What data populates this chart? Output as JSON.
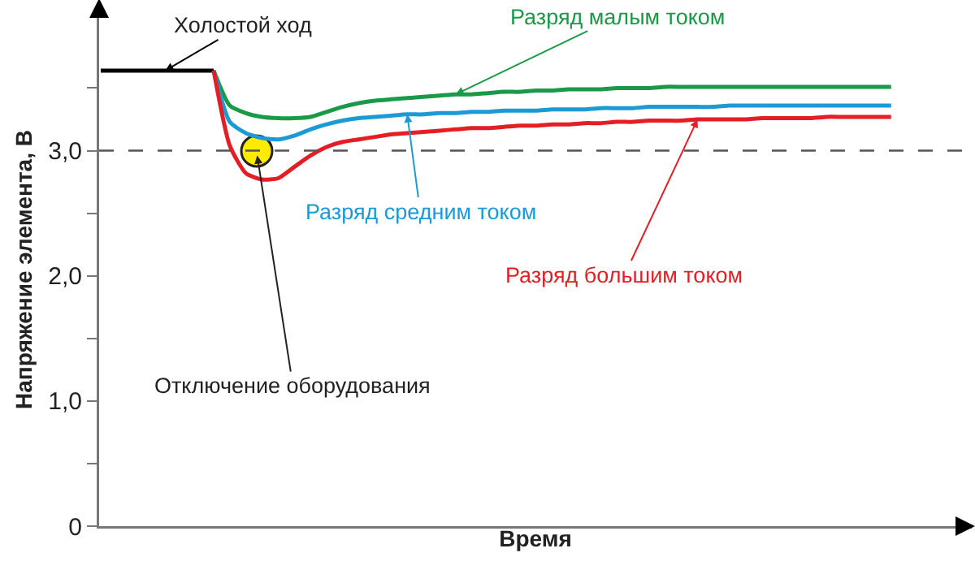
{
  "chart_data": {
    "type": "line",
    "xlabel": "Время",
    "ylabel": "Напряжение элемента, В",
    "categories": [
      null,
      null,
      null,
      null,
      null,
      null,
      null,
      null,
      null,
      null,
      null,
      null,
      null,
      null,
      null,
      null,
      null,
      null,
      null,
      null,
      null,
      null,
      null,
      null,
      null,
      null,
      null,
      null,
      null,
      null,
      null,
      null,
      null,
      null,
      null,
      null,
      null,
      null,
      null,
      null,
      null,
      null,
      null,
      null,
      null,
      null,
      null,
      null,
      null,
      null
    ],
    "series": [
      {
        "name": "Холостой ход",
        "color": "#000000",
        "values": [
          3.64,
          3.64,
          3.64,
          3.64,
          3.64,
          3.64,
          3.64,
          3.64,
          null,
          null,
          null,
          null,
          null,
          null,
          null,
          null,
          null,
          null,
          null,
          null,
          null,
          null,
          null,
          null,
          null,
          null,
          null,
          null,
          null,
          null,
          null,
          null,
          null,
          null,
          null,
          null,
          null,
          null,
          null,
          null,
          null,
          null,
          null,
          null,
          null,
          null,
          null,
          null,
          null,
          null
        ]
      },
      {
        "name": "Разряд малым током",
        "color": "#1a9a48",
        "values": [
          null,
          null,
          null,
          null,
          null,
          null,
          null,
          3.64,
          3.36,
          3.3,
          3.27,
          3.26,
          3.26,
          3.27,
          3.31,
          3.35,
          3.38,
          3.4,
          3.41,
          3.42,
          3.43,
          3.44,
          3.45,
          3.45,
          3.46,
          3.47,
          3.47,
          3.48,
          3.48,
          3.49,
          3.49,
          3.49,
          3.5,
          3.5,
          3.5,
          3.51,
          3.51,
          3.51,
          3.51,
          3.51,
          3.51,
          3.51,
          3.51,
          3.51,
          3.51,
          3.51,
          3.51,
          3.51,
          3.51,
          3.51
        ]
      },
      {
        "name": "Разряд средним током",
        "color": "#1b9ad6",
        "values": [
          null,
          null,
          null,
          null,
          null,
          null,
          null,
          3.64,
          3.23,
          3.14,
          3.1,
          3.09,
          3.12,
          3.17,
          3.21,
          3.24,
          3.26,
          3.27,
          3.28,
          3.29,
          3.29,
          3.3,
          3.3,
          3.31,
          3.31,
          3.32,
          3.32,
          3.32,
          3.33,
          3.33,
          3.33,
          3.34,
          3.34,
          3.34,
          3.35,
          3.35,
          3.35,
          3.35,
          3.35,
          3.36,
          3.36,
          3.36,
          3.36,
          3.36,
          3.36,
          3.36,
          3.36,
          3.36,
          3.36,
          3.36
        ]
      },
      {
        "name": "Разряд большим током",
        "color": "#e31e24",
        "values": [
          null,
          null,
          null,
          null,
          null,
          null,
          null,
          3.64,
          3.04,
          2.82,
          2.77,
          2.78,
          2.87,
          2.96,
          3.03,
          3.07,
          3.09,
          3.11,
          3.13,
          3.14,
          3.15,
          3.16,
          3.17,
          3.18,
          3.18,
          3.19,
          3.2,
          3.2,
          3.21,
          3.21,
          3.22,
          3.22,
          3.23,
          3.23,
          3.24,
          3.24,
          3.24,
          3.25,
          3.25,
          3.25,
          3.25,
          3.26,
          3.26,
          3.26,
          3.26,
          3.27,
          3.27,
          3.27,
          3.27,
          3.27
        ]
      }
    ],
    "ylim": [
      0,
      4.1
    ],
    "yticks": [
      0,
      {
        "value": 0.5,
        "label": null
      },
      {
        "value": 1,
        "label": "1,0"
      },
      {
        "value": 1.5,
        "label": null
      },
      {
        "value": 2,
        "label": "2,0"
      },
      {
        "value": 2.5,
        "label": null
      },
      {
        "value": 3,
        "label": "3,0"
      },
      {
        "value": 3.5,
        "label": null
      }
    ],
    "ref_lines": [
      {
        "axis": "y",
        "value": 3,
        "color": "#555555",
        "line_style": "dashed"
      }
    ],
    "annotations": [
      "Отключение оборудования"
    ],
    "tick_labels": "y",
    "grid": false,
    "legend": false,
    "marker": "none",
    "line_style": "solid"
  }
}
